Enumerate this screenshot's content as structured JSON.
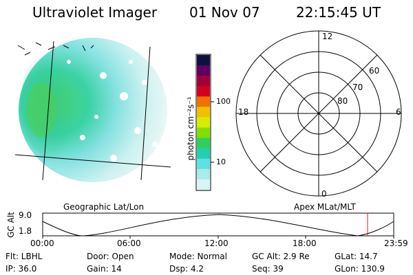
{
  "header": {
    "instrument": "Ultraviolet Imager",
    "date": "01 Nov 07",
    "time": "22:15:45 UT"
  },
  "image_panel": {
    "caption": "Geographic Lat/Lon"
  },
  "colorbar": {
    "unit_label": "photon cm⁻²s⁻¹",
    "ticks": [
      "100",
      "10"
    ],
    "colors": [
      "#101040",
      "#600060",
      "#a0003a",
      "#d40020",
      "#f07000",
      "#f0c000",
      "#d8ec00",
      "#80e000",
      "#30d060",
      "#20d0b0",
      "#60e0e0",
      "#a8ecec",
      "#d8f4f4"
    ]
  },
  "polar_plot": {
    "caption": "Apex MLat/MLT",
    "mlt_labels": {
      "top": "12",
      "left": "18",
      "right": "6",
      "bottom": "0"
    },
    "lat_labels": [
      "60",
      "70",
      "80"
    ]
  },
  "altitude_plot": {
    "ylabel": "GC Alt",
    "yticks": [
      "9.0",
      "1.8"
    ],
    "xticks": [
      "00:00",
      "06:00",
      "12:00",
      "18:00",
      "23:59"
    ],
    "current_time_marker_color": "#d02020"
  },
  "info": {
    "flt": "Flt: LBHL",
    "door": "Door: Open",
    "mode": "Mode: Normal",
    "gc_alt": "GC Alt: 2.9 Re",
    "glat": "GLat:  14.7",
    "ip": "IP: 36.0",
    "gain": "Gain: 14",
    "dsp": "Dsp:     4.2",
    "seq": "Seq: 39",
    "glon": "GLon: 130.9"
  }
}
